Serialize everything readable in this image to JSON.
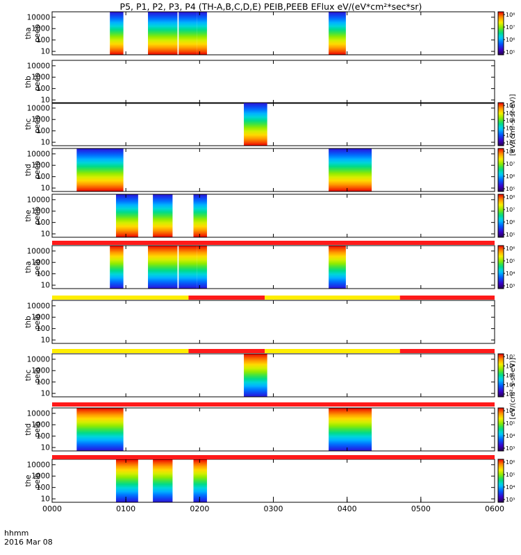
{
  "title": "P5, P1, P2, P3, P4 (TH-A,B,C,D,E) PEIB,PEEB EFlux eV/(eV*cm²*sec*sr)",
  "colorbar_label_electrons": "[eV/(cm²-s-sr-eV)]",
  "colorbar_label_ions": "[eV/(cm²-s-sr-eV)]",
  "x_axis": {
    "corner_label_1": "hhmm",
    "corner_label_2": "2016 Mar 08",
    "ticks": [
      "0000",
      "0100",
      "0200",
      "0300",
      "0400",
      "0500",
      "0600"
    ]
  },
  "y_ticks": [
    "10000",
    "1000",
    "100",
    "10"
  ],
  "colors": {
    "flag_red": "#ff1a1a",
    "flag_yellow": "#ffee00",
    "frame": "#000000"
  },
  "chart_data": {
    "type": "heatmap",
    "x_unit": "hhmm (UT), 2016-03-08",
    "xlim": [
      "0000",
      "0600"
    ],
    "y_scale": "log",
    "ylim": [
      5,
      30000
    ],
    "panels": [
      {
        "label_1": "tha",
        "label_2": "peeb",
        "species": "electron",
        "intervals": [
          [
            "0047",
            "0058"
          ],
          [
            "0118",
            "0142"
          ],
          [
            "0143",
            "0158"
          ],
          [
            "0158",
            "0206"
          ],
          [
            "0345",
            "0359"
          ]
        ],
        "cbar_ticks": [
          "10⁸",
          "10⁷",
          "10⁶",
          "10⁵"
        ]
      },
      {
        "label_1": "thb",
        "label_2": "peeb",
        "species": "electron",
        "intervals": [],
        "cbar_ticks": []
      },
      {
        "label_1": "thc",
        "label_2": "peeb",
        "species": "electron",
        "intervals": [
          [
            "0236",
            "0255"
          ]
        ],
        "cbar_ticks": [
          "10⁸",
          "10⁷",
          "10⁶",
          "10⁵",
          "10⁴",
          "10³"
        ]
      },
      {
        "label_1": "thd",
        "label_2": "peeb",
        "species": "electron",
        "intervals": [
          [
            "0020",
            "0058"
          ],
          [
            "0345",
            "0420"
          ]
        ],
        "cbar_ticks": [
          "10⁸",
          "10⁷",
          "10⁶",
          "10⁵"
        ]
      },
      {
        "label_1": "the",
        "label_2": "peeb",
        "species": "electron",
        "intervals": [
          [
            "0052",
            "0110"
          ],
          [
            "0122",
            "0138"
          ],
          [
            "0155",
            "0206"
          ]
        ],
        "cbar_ticks": [
          "10⁸",
          "10⁷",
          "10⁶",
          "10⁵"
        ]
      },
      {
        "label_1": "tha",
        "label_2": "peib",
        "species": "ion",
        "intervals": [
          [
            "0047",
            "0058"
          ],
          [
            "0118",
            "0142"
          ],
          [
            "0143",
            "0158"
          ],
          [
            "0158",
            "0206"
          ],
          [
            "0345",
            "0359"
          ]
        ],
        "cbar_ticks": [
          "10⁶",
          "10⁵",
          "10⁴",
          "10³"
        ]
      },
      {
        "label_1": "thb",
        "label_2": "peib",
        "species": "ion",
        "intervals": [],
        "cbar_ticks": []
      },
      {
        "label_1": "thc",
        "label_2": "peib",
        "species": "ion",
        "intervals": [
          [
            "0236",
            "0255"
          ]
        ],
        "cbar_ticks": [
          "10⁷",
          "10⁶",
          "10⁵",
          "10⁴",
          "10³"
        ]
      },
      {
        "label_1": "thd",
        "label_2": "peib",
        "species": "ion",
        "intervals": [
          [
            "0020",
            "0058"
          ],
          [
            "0345",
            "0420"
          ]
        ],
        "cbar_ticks": [
          "10⁶",
          "10⁵",
          "10⁴",
          "10³"
        ]
      },
      {
        "label_1": "the",
        "label_2": "peib",
        "species": "ion",
        "intervals": [
          [
            "0052",
            "0110"
          ],
          [
            "0122",
            "0138"
          ],
          [
            "0155",
            "0206"
          ]
        ],
        "cbar_ticks": [
          "10⁶",
          "10⁵",
          "10⁴",
          "10³"
        ]
      }
    ],
    "flag_bars": [
      {
        "after_panel": 5,
        "segments": [
          {
            "from": "0000",
            "to": "0600",
            "color": "red"
          }
        ]
      },
      {
        "after_panel": 6,
        "segments": [
          {
            "from": "0000",
            "to": "0151",
            "color": "yellow"
          },
          {
            "from": "0151",
            "to": "0253",
            "color": "red"
          },
          {
            "from": "0253",
            "to": "0443",
            "color": "yellow"
          },
          {
            "from": "0443",
            "to": "0600",
            "color": "red"
          }
        ]
      },
      {
        "after_panel": 7,
        "segments": [
          {
            "from": "0000",
            "to": "0151",
            "color": "yellow"
          },
          {
            "from": "0151",
            "to": "0253",
            "color": "red"
          },
          {
            "from": "0253",
            "to": "0443",
            "color": "yellow"
          },
          {
            "from": "0443",
            "to": "0600",
            "color": "red"
          }
        ]
      },
      {
        "after_panel": 8,
        "segments": [
          {
            "from": "0000",
            "to": "0600",
            "color": "red"
          }
        ]
      },
      {
        "after_panel": 9,
        "segments": [
          {
            "from": "0000",
            "to": "0600",
            "color": "red"
          }
        ]
      }
    ]
  }
}
